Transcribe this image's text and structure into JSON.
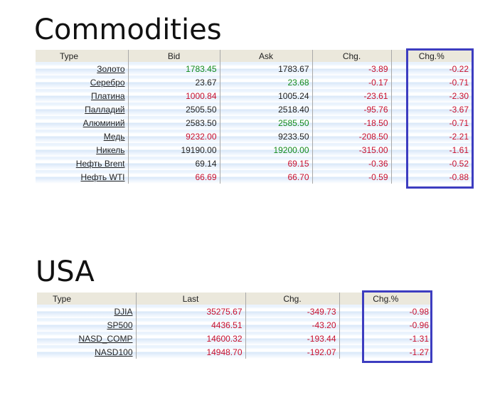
{
  "commodities": {
    "title": "Commodities",
    "headers": {
      "type": "Type",
      "bid": "Bid",
      "ask": "Ask",
      "chg": "Chg.",
      "chg_pct": "Chg.%"
    },
    "rows": [
      {
        "name": "Золото",
        "bid": "1783.45",
        "bid_color": "green",
        "ask": "1783.67",
        "ask_color": "black",
        "chg": "-3.89",
        "chg_pct": "-0.22"
      },
      {
        "name": "Серебро",
        "bid": "23.67",
        "bid_color": "black",
        "ask": "23.68",
        "ask_color": "green",
        "chg": "-0.17",
        "chg_pct": "-0.71"
      },
      {
        "name": "Платина",
        "bid": "1000.84",
        "bid_color": "red",
        "ask": "1005.24",
        "ask_color": "black",
        "chg": "-23.61",
        "chg_pct": "-2.30"
      },
      {
        "name": "Палладий",
        "bid": "2505.50",
        "bid_color": "black",
        "ask": "2518.40",
        "ask_color": "black",
        "chg": "-95.76",
        "chg_pct": "-3.67"
      },
      {
        "name": "Алюминий",
        "bid": "2583.50",
        "bid_color": "black",
        "ask": "2585.50",
        "ask_color": "green",
        "chg": "-18.50",
        "chg_pct": "-0.71"
      },
      {
        "name": "Медь",
        "bid": "9232.00",
        "bid_color": "red",
        "ask": "9233.50",
        "ask_color": "black",
        "chg": "-208.50",
        "chg_pct": "-2.21"
      },
      {
        "name": "Никель",
        "bid": "19190.00",
        "bid_color": "black",
        "ask": "19200.00",
        "ask_color": "green",
        "chg": "-315.00",
        "chg_pct": "-1.61"
      },
      {
        "name": "Нефть Brent",
        "bid": "69.14",
        "bid_color": "black",
        "ask": "69.15",
        "ask_color": "red",
        "chg": "-0.36",
        "chg_pct": "-0.52"
      },
      {
        "name": "Нефть WTI",
        "bid": "66.69",
        "bid_color": "red",
        "ask": "66.70",
        "ask_color": "red",
        "chg": "-0.59",
        "chg_pct": "-0.88"
      }
    ]
  },
  "usa": {
    "title": "USA",
    "headers": {
      "type": "Type",
      "last": "Last",
      "chg": "Chg.",
      "chg_pct": "Chg.%"
    },
    "rows": [
      {
        "name": "DJIA",
        "last": "35275.67",
        "chg": "-349.73",
        "chg_pct": "-0.98"
      },
      {
        "name": "SP500",
        "last": "4436.51",
        "chg": "-43.20",
        "chg_pct": "-0.96"
      },
      {
        "name": "NASD_COMP",
        "last": "14600.32",
        "chg": "-193.44",
        "chg_pct": "-1.31"
      },
      {
        "name": "NASD100",
        "last": "14948.70",
        "chg": "-192.07",
        "chg_pct": "-1.27"
      }
    ]
  },
  "colors": {
    "highlight_box": "#3d3dc0",
    "up": "#138a1c",
    "down": "#c8102e",
    "header_bg": "#ebe8dc"
  }
}
